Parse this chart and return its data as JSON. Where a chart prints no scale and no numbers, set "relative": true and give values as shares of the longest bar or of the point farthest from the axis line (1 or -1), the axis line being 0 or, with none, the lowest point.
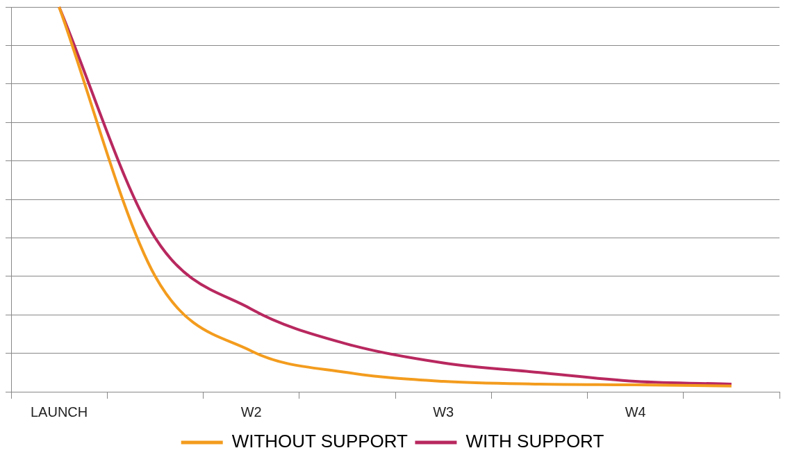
{
  "chart_data": {
    "type": "line",
    "relative": true,
    "categories": [
      "LAUNCH",
      null,
      "W2",
      null,
      "W3",
      null,
      "W4",
      null
    ],
    "series": [
      {
        "name": "WITHOUT SUPPORT",
        "color": "#f39c1e",
        "values": [
          1,
          0.3,
          0.106,
          0.05,
          0.027,
          0.02,
          0.018,
          0.015
        ]
      },
      {
        "name": "WITH SUPPORT",
        "color": "#b8285f",
        "values": [
          1,
          0.4,
          0.215,
          0.124,
          0.075,
          0.05,
          0.027,
          0.02
        ]
      }
    ],
    "grid": "y",
    "legend": "bottom",
    "marker": "none",
    "line_style": "solid"
  }
}
